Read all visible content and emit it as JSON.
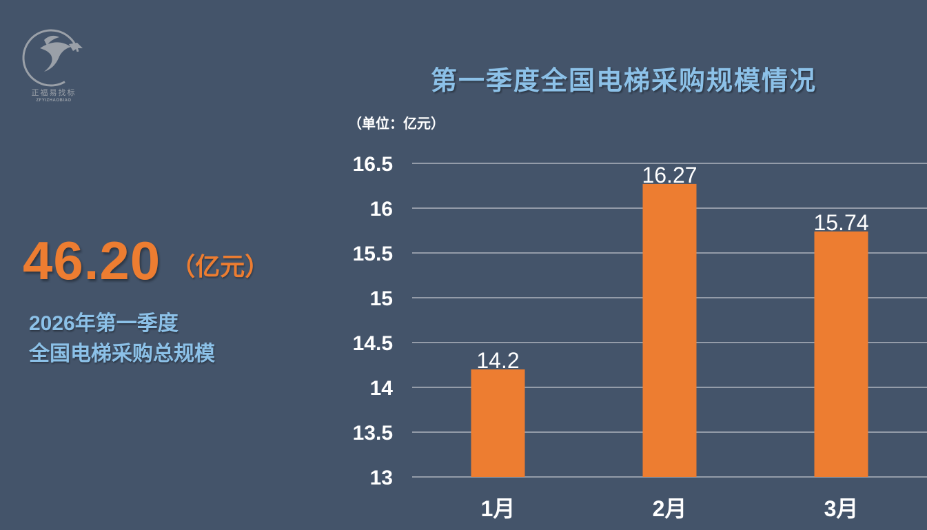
{
  "logo": {
    "name_cn": "正福易找标",
    "name_en": "ZFYIZHAOBIAO"
  },
  "summary": {
    "total_value": "46.20",
    "total_unit": "（亿元）",
    "subtitle_line1": "2026年第一季度",
    "subtitle_line2": "全国电梯采购总规模"
  },
  "colors": {
    "background": "#44546a",
    "bar": "#ed7d31",
    "title": "#8cc1e8",
    "text": "#ffffff",
    "gridline": "#ffffff"
  },
  "chart_data": {
    "type": "bar",
    "title": "第一季度全国电梯采购规模情况",
    "unit_label": "（单位：亿元）",
    "categories": [
      "1月",
      "2月",
      "3月"
    ],
    "series": [
      {
        "values": [
          14.2,
          16.27,
          15.74
        ],
        "data_labels": [
          "14.2",
          "16.27",
          "15.74"
        ]
      }
    ],
    "ylim": [
      13,
      16.5
    ],
    "yticks": [
      13,
      13.5,
      14,
      14.5,
      15,
      15.5,
      16,
      16.5
    ],
    "ytick_labels": [
      "13",
      "13.5",
      "14",
      "14.5",
      "15",
      "15.5",
      "16",
      "16.5"
    ],
    "grid": true,
    "xlabel": "",
    "ylabel": ""
  }
}
